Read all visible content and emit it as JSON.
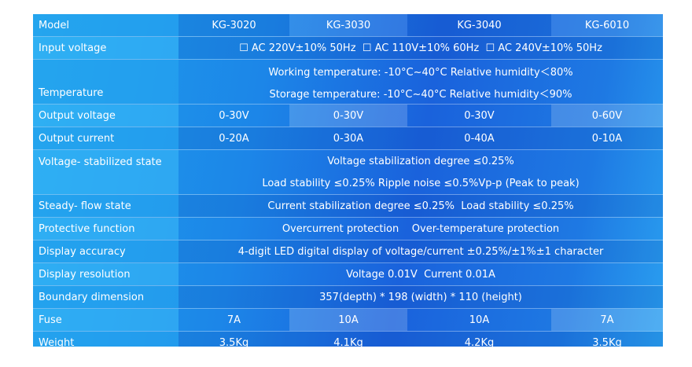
{
  "header": {
    "label": "Model",
    "models": [
      "KG-3020",
      "KG-3030",
      "KG-3040",
      "KG-6010"
    ]
  },
  "rows": {
    "input_voltage": {
      "label": "Input voltage",
      "value": "☐ AC 220V±10% 50Hz  ☐ AC 110V±10% 60Hz  ☐ AC 240V±10% 50Hz"
    },
    "temperature": {
      "label": "Temperature",
      "line1": "Working temperature: -10°C~40°C Relative humidity＜80%",
      "line2": "Storage temperature: -10°C~40°C Relative humidity＜90%"
    },
    "output_voltage": {
      "label": "Output voltage",
      "values": [
        "0-30V",
        "0-30V",
        "0-30V",
        "0-60V"
      ]
    },
    "output_current": {
      "label": "Output current",
      "values": [
        "0-20A",
        "0-30A",
        "0-40A",
        "0-10A"
      ]
    },
    "voltage_stabilized": {
      "label": "Voltage- stabilized state",
      "line1": "Voltage stabilization degree ≤0.25%",
      "line2": "Load stability ≤0.25%  Ripple noise ≤0.5%Vp-p (Peak to peak)"
    },
    "steady_flow": {
      "label": "Steady- flow state",
      "value": "Current stabilization degree ≤0.25%  Load stability ≤0.25%"
    },
    "protective": {
      "label": "Protective function",
      "value": "Overcurrent protection    Over-temperature protection"
    },
    "display_accuracy": {
      "label": "Display accuracy",
      "value": "4-digit LED digital display of voltage/current ±0.25%/±1%±1 character"
    },
    "display_resolution": {
      "label": "Display resolution",
      "value": "Voltage 0.01V  Current 0.01A"
    },
    "boundary": {
      "label": "Boundary dimension",
      "value": "357(depth) * 198 (width) * 110 (height)"
    },
    "fuse": {
      "label": "Fuse",
      "values": [
        "7A",
        "10A",
        "10A",
        "7A"
      ]
    },
    "weight": {
      "label": "Weight",
      "values": [
        "3.5Kg",
        "4.1Kg",
        "4.2Kg",
        "3.5Kg"
      ]
    }
  }
}
